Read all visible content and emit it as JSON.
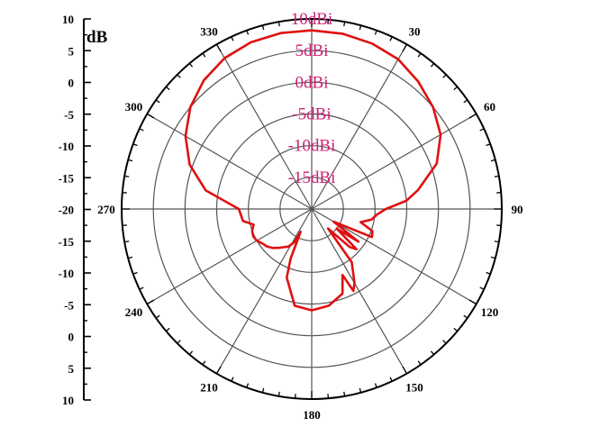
{
  "chart_data": {
    "type": "polar-line",
    "unit_label": "dB",
    "left_axis_ticks": [
      "10",
      "5",
      "0",
      "-5",
      "-10",
      "-15",
      "-20",
      "-15",
      "-10",
      "-5",
      "0",
      "5",
      "10"
    ],
    "ring_labels": [
      "10dBi",
      "5dBi",
      "0dBi",
      "-5dBi",
      "-10dBi",
      "-15dBi"
    ],
    "ring_values": [
      10,
      5,
      0,
      -5,
      -10,
      -15
    ],
    "radial_range": [
      -20,
      10
    ],
    "angle_labels": [
      {
        "angle": 0,
        "text": ""
      },
      {
        "angle": 30,
        "text": "30"
      },
      {
        "angle": 60,
        "text": "60"
      },
      {
        "angle": 90,
        "text": "90"
      },
      {
        "angle": 120,
        "text": "120"
      },
      {
        "angle": 150,
        "text": "150"
      },
      {
        "angle": 180,
        "text": "180"
      },
      {
        "angle": 210,
        "text": "210"
      },
      {
        "angle": 240,
        "text": "240"
      },
      {
        "angle": 270,
        "text": "270"
      },
      {
        "angle": 300,
        "text": "300"
      },
      {
        "angle": 330,
        "text": "330"
      }
    ],
    "series": [
      {
        "color": "#e01010",
        "angles": [
          0,
          10,
          20,
          30,
          40,
          50,
          60,
          70,
          80,
          85,
          90,
          95,
          100,
          105,
          110,
          115,
          120,
          125,
          128,
          132,
          135,
          140,
          143,
          147,
          150,
          153,
          155,
          160,
          170,
          180,
          190,
          200,
          203,
          206,
          208,
          212,
          215,
          220,
          225,
          230,
          235,
          240,
          245,
          250,
          255,
          260,
          265,
          270,
          280,
          290,
          300,
          310,
          320,
          330,
          340,
          350
        ],
        "values": [
          8.2,
          8.1,
          7.8,
          7.3,
          6.2,
          5.0,
          3.5,
          1.0,
          -3.0,
          -5.0,
          -8.3,
          -9.7,
          -10.4,
          -12.0,
          -9.8,
          -9.5,
          -16.0,
          -11.0,
          -15.0,
          -10.5,
          -11.5,
          -16.0,
          -9.5,
          -8.0,
          -6.5,
          -5.5,
          -8.5,
          -5.8,
          -4.5,
          -4.0,
          -4.5,
          -8.5,
          -11.5,
          -16.0,
          -14.0,
          -13.0,
          -12.7,
          -12.0,
          -11.3,
          -10.8,
          -10.5,
          -10.0,
          -9.8,
          -10.0,
          -10.5,
          -9.0,
          -8.8,
          -8.5,
          -3.0,
          0.5,
          3.0,
          5.0,
          6.5,
          7.5,
          8.0,
          8.2
        ]
      }
    ]
  }
}
